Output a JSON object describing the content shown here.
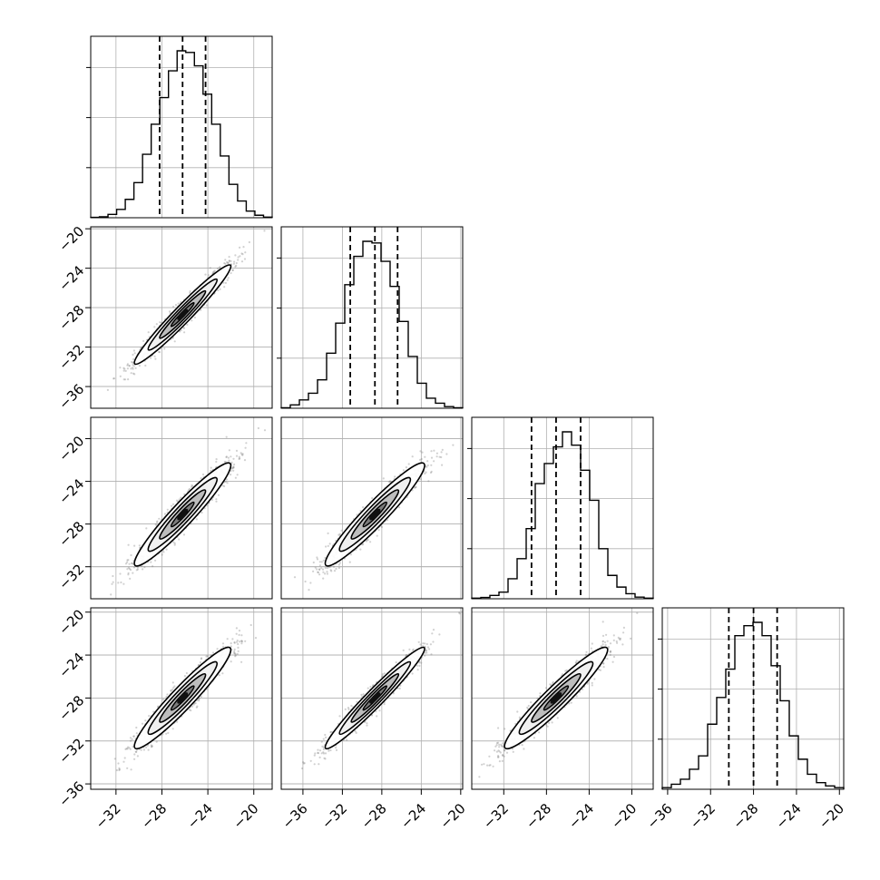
{
  "chart_data": {
    "type": "corner",
    "title": "",
    "grid": true,
    "axis_labels": [
      "",
      "",
      "",
      ""
    ],
    "parameters": [
      {
        "index": 0,
        "median": -26.2,
        "q16": -28.2,
        "q84": -24.2,
        "range": [
          -34.2,
          -18.4
        ],
        "histogram": [
          0.002,
          0.006,
          0.02,
          0.05,
          0.11,
          0.21,
          0.38,
          0.56,
          0.72,
          0.88,
          1.0,
          0.99,
          0.91,
          0.74,
          0.56,
          0.37,
          0.2,
          0.1,
          0.04,
          0.015,
          0.004
        ]
      },
      {
        "index": 1,
        "median": -28.7,
        "q16": -31.2,
        "q84": -26.4,
        "range": [
          -38.2,
          -19.8
        ],
        "histogram": [
          0.003,
          0.02,
          0.05,
          0.09,
          0.17,
          0.33,
          0.51,
          0.74,
          0.91,
          1.0,
          0.99,
          0.88,
          0.73,
          0.52,
          0.31,
          0.15,
          0.06,
          0.03,
          0.01,
          0.003
        ]
      },
      {
        "index": 2,
        "median": -27.1,
        "q16": -29.4,
        "q84": -24.8,
        "range": [
          -35.0,
          -18.0
        ],
        "histogram": [
          0.004,
          0.008,
          0.02,
          0.04,
          0.12,
          0.24,
          0.42,
          0.69,
          0.81,
          0.91,
          1.0,
          0.92,
          0.77,
          0.59,
          0.3,
          0.14,
          0.07,
          0.03,
          0.01,
          0.004
        ]
      },
      {
        "index": 3,
        "median": -28.0,
        "q16": -30.3,
        "q84": -25.8,
        "range": [
          -36.5,
          -19.6
        ],
        "histogram": [
          0.01,
          0.03,
          0.06,
          0.12,
          0.2,
          0.39,
          0.55,
          0.72,
          0.92,
          0.98,
          1.0,
          0.92,
          0.74,
          0.53,
          0.32,
          0.18,
          0.09,
          0.04,
          0.02,
          0.01
        ]
      }
    ],
    "correlations": [
      {
        "x": 0,
        "y": 1,
        "rho": 0.97
      },
      {
        "x": 0,
        "y": 2,
        "rho": 0.95
      },
      {
        "x": 1,
        "y": 2,
        "rho": 0.95
      },
      {
        "x": 0,
        "y": 3,
        "rho": 0.95
      },
      {
        "x": 1,
        "y": 3,
        "rho": 0.97
      },
      {
        "x": 2,
        "y": 3,
        "rho": 0.95
      }
    ],
    "x_ticks": [
      [
        -32,
        -28,
        -24,
        -20
      ],
      [
        -36,
        -32,
        -28,
        -24,
        -20
      ],
      [
        -32,
        -28,
        -24,
        -20
      ],
      [
        -36,
        -32,
        -28,
        -24,
        -20
      ]
    ],
    "y_ticks": [
      [],
      [
        -20,
        -24,
        -28,
        -32,
        -36
      ],
      [
        -20,
        -24,
        -28,
        -32
      ],
      [
        -20,
        -24,
        -28,
        -32,
        -36
      ]
    ]
  },
  "colors": {
    "frame": "#000000",
    "grid": "#b0b0b0",
    "points": "#7a7a7a",
    "contour": "#000000"
  }
}
